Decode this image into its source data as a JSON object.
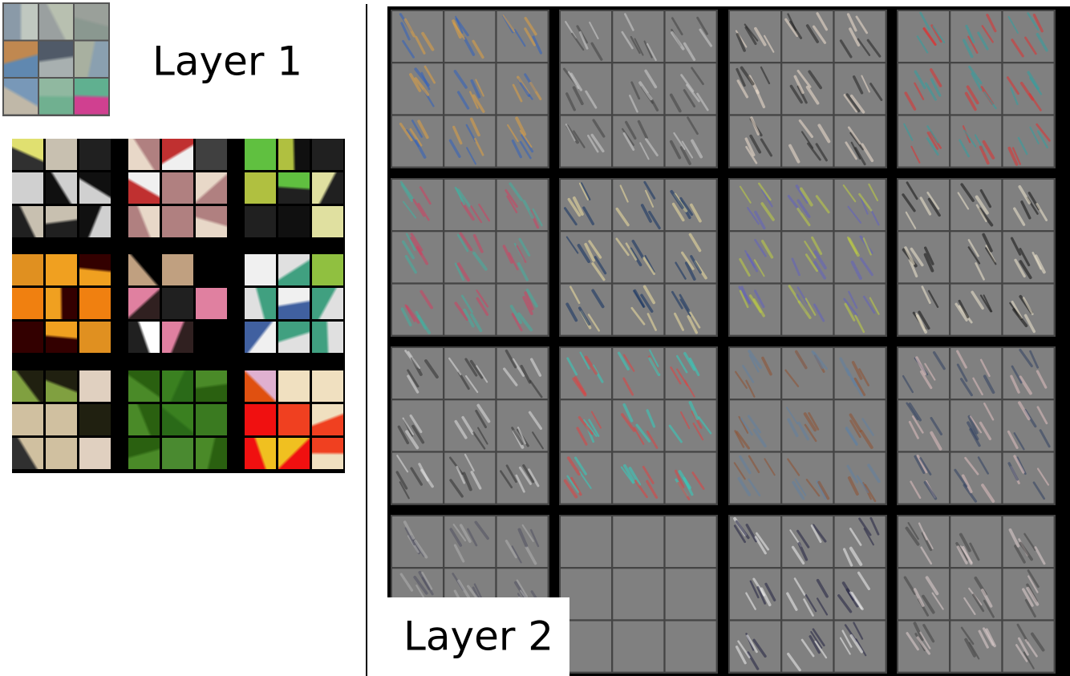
{
  "panels": [
    {
      "label": "Layer 1"
    },
    {
      "label": "Layer 2"
    }
  ]
}
